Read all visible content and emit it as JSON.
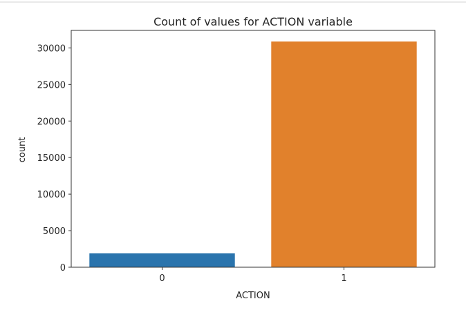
{
  "colors": {
    "bar_0": "#2a74ad",
    "bar_1": "#e1812c",
    "axis": "#333333",
    "text": "#262626"
  },
  "chart_data": {
    "type": "bar",
    "title": "Count of values for ACTION variable",
    "xlabel": "ACTION",
    "ylabel": "count",
    "categories": [
      "0",
      "1"
    ],
    "values": [
      1897,
      30872
    ],
    "ylim": [
      0,
      32400
    ],
    "yticks": [
      0,
      5000,
      10000,
      15000,
      20000,
      25000,
      30000
    ],
    "ytick_labels": [
      "0",
      "5000",
      "10000",
      "15000",
      "20000",
      "25000",
      "30000"
    ],
    "grid": false,
    "legend": false
  }
}
